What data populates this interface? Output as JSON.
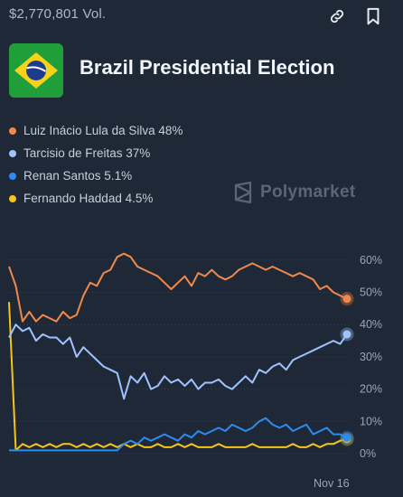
{
  "topbar": {
    "volume": "$2,770,801 Vol.",
    "link_icon": "link-icon",
    "bookmark_icon": "bookmark-icon"
  },
  "header": {
    "title": "Brazil Presidential Election",
    "flag_icon": "brazil-flag-icon"
  },
  "legend": [
    {
      "label": "Luiz Inácio Lula da Silva 48%",
      "color": "#f08a4b"
    },
    {
      "label": "Tarcisio de Freitas 37%",
      "color": "#9fc3ff"
    },
    {
      "label": "Renan Santos 5.1%",
      "color": "#2d8cf0"
    },
    {
      "label": "Fernando Haddad 4.5%",
      "color": "#f5c518"
    }
  ],
  "watermark": "Polymarket",
  "chart_data": {
    "type": "line",
    "ylim": [
      0,
      65
    ],
    "y_ticks": [
      "60%",
      "50%",
      "40%",
      "30%",
      "20%",
      "10%",
      "0%"
    ],
    "y_tick_values": [
      60,
      50,
      40,
      30,
      20,
      10,
      0
    ],
    "x_ticks": [
      "Nov 16"
    ],
    "grid": true,
    "series": [
      {
        "name": "Luiz Inácio Lula da Silva",
        "color": "#f08a4b",
        "values": [
          58,
          52,
          41,
          44,
          41,
          43,
          42,
          41,
          44,
          42,
          43,
          49,
          53,
          52,
          56,
          57,
          61,
          62,
          61,
          58,
          57,
          56,
          55,
          53,
          51,
          53,
          55,
          52,
          56,
          55,
          57,
          55,
          54,
          55,
          57,
          58,
          59,
          58,
          57,
          58,
          57,
          56,
          55,
          56,
          55,
          54,
          51,
          52,
          50,
          49,
          48
        ]
      },
      {
        "name": "Tarcisio de Freitas",
        "color": "#9fc3ff",
        "values": [
          36,
          40,
          38,
          39,
          35,
          37,
          36,
          36,
          34,
          36,
          30,
          33,
          31,
          29,
          27,
          26,
          25,
          17,
          24,
          22,
          25,
          20,
          21,
          24,
          22,
          23,
          21,
          23,
          20,
          22,
          22,
          23,
          21,
          20,
          22,
          24,
          22,
          26,
          25,
          27,
          28,
          26,
          29,
          30,
          31,
          32,
          33,
          34,
          35,
          34,
          37
        ]
      },
      {
        "name": "Renan Santos",
        "color": "#2d8cf0",
        "values": [
          1,
          1,
          1,
          1,
          1,
          1,
          1,
          1,
          1,
          1,
          1,
          1,
          1,
          1,
          1,
          1,
          1,
          3,
          4,
          3,
          5,
          4,
          5,
          6,
          5,
          4,
          6,
          5,
          7,
          6,
          7,
          8,
          7,
          9,
          8,
          7,
          8,
          10,
          11,
          9,
          8,
          9,
          7,
          8,
          9,
          6,
          7,
          8,
          6,
          6,
          5
        ]
      },
      {
        "name": "Fernando Haddad",
        "color": "#f5c518",
        "values": [
          47,
          1,
          3,
          2,
          3,
          2,
          3,
          2,
          3,
          3,
          2,
          3,
          2,
          3,
          2,
          3,
          2,
          3,
          2,
          3,
          2,
          2,
          3,
          2,
          2,
          3,
          2,
          3,
          2,
          2,
          2,
          3,
          2,
          2,
          2,
          2,
          3,
          2,
          2,
          2,
          2,
          2,
          3,
          2,
          2,
          3,
          2,
          3,
          3,
          4,
          4.5
        ]
      }
    ]
  }
}
